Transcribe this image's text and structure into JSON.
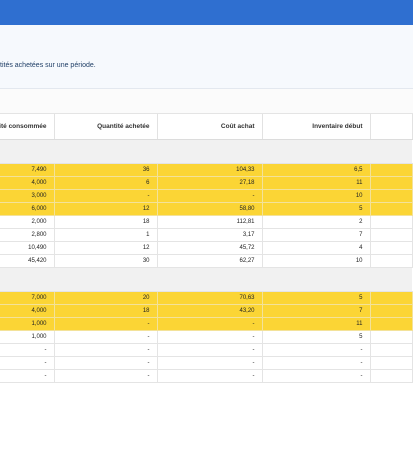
{
  "description": "tités achetées sur une période.",
  "columns": [
    "ité consommée",
    "Quantité achetée",
    "Coût achat",
    "Inventaire début",
    ""
  ],
  "group1": [
    {
      "hl": true,
      "cells": [
        "7,490",
        "36",
        "104,33",
        "6,5",
        ""
      ]
    },
    {
      "hl": true,
      "cells": [
        "4,000",
        "6",
        "27,18",
        "11",
        ""
      ]
    },
    {
      "hl": true,
      "cells": [
        "3,000",
        "-",
        "-",
        "10",
        ""
      ]
    },
    {
      "hl": true,
      "cells": [
        "6,000",
        "12",
        "58,80",
        "5",
        ""
      ]
    },
    {
      "hl": false,
      "cells": [
        "2,000",
        "18",
        "112,81",
        "2",
        ""
      ]
    },
    {
      "hl": false,
      "cells": [
        "2,800",
        "1",
        "3,17",
        "7",
        ""
      ]
    },
    {
      "hl": false,
      "cells": [
        "10,490",
        "12",
        "45,72",
        "4",
        ""
      ]
    },
    {
      "hl": false,
      "cells": [
        "45,420",
        "30",
        "62,27",
        "10",
        ""
      ]
    }
  ],
  "group2": [
    {
      "hl": true,
      "cells": [
        "7,000",
        "20",
        "70,63",
        "5",
        ""
      ]
    },
    {
      "hl": true,
      "cells": [
        "4,000",
        "18",
        "43,20",
        "7",
        ""
      ]
    },
    {
      "hl": true,
      "cells": [
        "1,000",
        "-",
        "-",
        "11",
        ""
      ]
    },
    {
      "hl": false,
      "cells": [
        "1,000",
        "-",
        "-",
        "5",
        ""
      ]
    },
    {
      "hl": false,
      "cells": [
        "-",
        "-",
        "-",
        "-",
        ""
      ]
    },
    {
      "hl": false,
      "cells": [
        "-",
        "-",
        "-",
        "-",
        ""
      ]
    },
    {
      "hl": false,
      "cells": [
        "-",
        "-",
        "-",
        "-",
        ""
      ]
    }
  ]
}
